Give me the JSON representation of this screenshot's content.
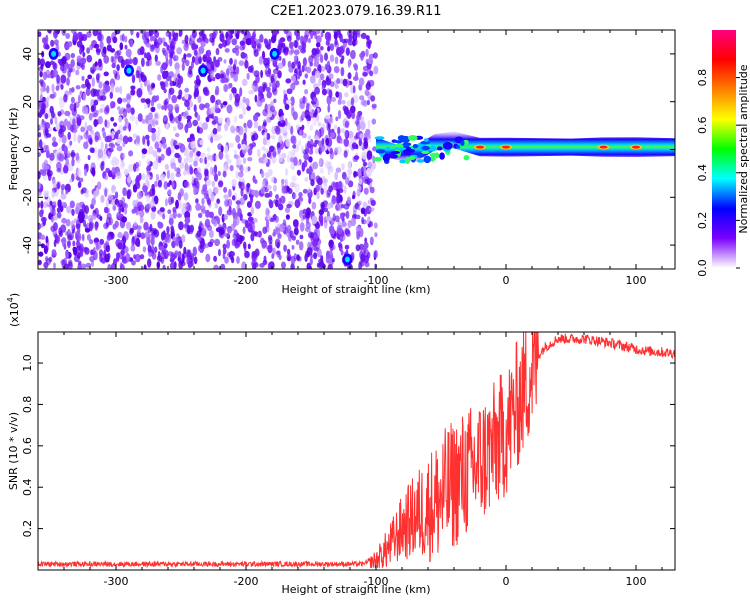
{
  "title": "C2E1.2023.079.16.39.R11",
  "chart_data": [
    {
      "type": "heatmap",
      "xlabel": "Height of straight line (km)",
      "ylabel": "Frequency (Hz)",
      "xlim": [
        -360,
        130
      ],
      "ylim": [
        -50,
        50
      ],
      "x_ticks": [
        -300,
        -200,
        -100,
        0,
        100
      ],
      "y_ticks": [
        -40,
        -20,
        0,
        20,
        40
      ],
      "noise_region": {
        "x_range": [
          -360,
          -100
        ],
        "amplitude_range": [
          0.0,
          0.25
        ]
      },
      "signal_band": {
        "frequency_center": 1,
        "points": [
          {
            "x": -100,
            "f": 2,
            "amp": 0.35
          },
          {
            "x": -85,
            "f": -1,
            "amp": 0.45
          },
          {
            "x": -70,
            "f": -2,
            "amp": 0.5
          },
          {
            "x": -55,
            "f": 3,
            "amp": 0.55
          },
          {
            "x": -40,
            "f": 4,
            "amp": 0.6
          },
          {
            "x": -20,
            "f": 1,
            "amp": 0.75
          },
          {
            "x": 0,
            "f": 1,
            "amp": 0.8
          },
          {
            "x": 50,
            "f": 1,
            "amp": 0.6
          },
          {
            "x": 75,
            "f": 1,
            "amp": 0.85
          },
          {
            "x": 100,
            "f": 1,
            "amp": 0.9
          },
          {
            "x": 130,
            "f": 1,
            "amp": 0.7
          }
        ]
      },
      "hotspots": [
        {
          "x": -348,
          "f": 40
        },
        {
          "x": -290,
          "f": 33
        },
        {
          "x": -233,
          "f": 33
        },
        {
          "x": -178,
          "f": 40
        },
        {
          "x": -122,
          "f": -46
        }
      ],
      "colorbar": {
        "label": "Normalized spectral amplitude",
        "range": [
          0,
          1
        ],
        "ticks": [
          0.0,
          0.2,
          0.4,
          0.6,
          0.8
        ],
        "tick_labels": [
          "0.0",
          "0.2",
          "0.4",
          "0.6",
          "0.8"
        ],
        "colors": [
          "#ffffff",
          "#7b00ff",
          "#0000ff",
          "#00ffff",
          "#00ff00",
          "#ffff00",
          "#ff8000",
          "#ff0000",
          "#ff0080"
        ]
      }
    },
    {
      "type": "line",
      "xlabel": "Height of straight line (km)",
      "ylabel": "SNR (10 * v/v)",
      "y_multiplier": "(x10",
      "y_multiplier_exp": "4",
      "y_multiplier_close": ")",
      "xlim": [
        -360,
        130
      ],
      "ylim": [
        0,
        1.15
      ],
      "x_ticks": [
        -300,
        -200,
        -100,
        0,
        100
      ],
      "y_ticks": [
        0.2,
        0.4,
        0.6,
        0.8,
        1.0
      ],
      "y_tick_labels": [
        "0.2",
        "0.4",
        "0.6",
        "0.8",
        "1.0"
      ],
      "series": [
        {
          "color": "#ff3030",
          "x": [
            -360,
            -300,
            -200,
            -110,
            -100,
            -90,
            -80,
            -70,
            -60,
            -50,
            -40,
            -30,
            -20,
            -10,
            0,
            10,
            20,
            30,
            40,
            60,
            80,
            100,
            110,
            130
          ],
          "y": [
            0.03,
            0.03,
            0.03,
            0.03,
            0.05,
            0.12,
            0.22,
            0.28,
            0.33,
            0.38,
            0.45,
            0.5,
            0.55,
            0.62,
            0.7,
            0.85,
            1.0,
            1.08,
            1.12,
            1.12,
            1.1,
            1.07,
            1.06,
            1.05
          ]
        }
      ]
    }
  ]
}
